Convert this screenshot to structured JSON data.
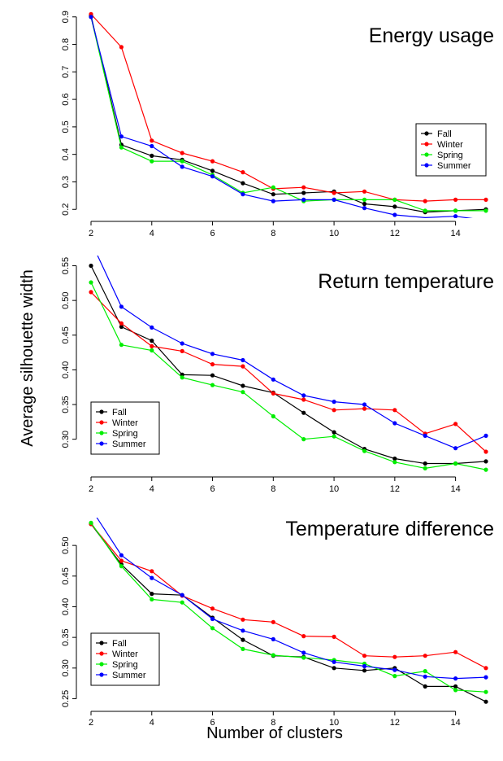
{
  "figure": {
    "ylabel": "Average silhouette width",
    "xlabel": "Number of clusters"
  },
  "chart_data": [
    {
      "type": "line",
      "title": "Energy usage",
      "xlabel": "Number of clusters",
      "ylabel": "Average silhouette width",
      "x": [
        2,
        3,
        4,
        5,
        6,
        7,
        8,
        9,
        10,
        11,
        12,
        13,
        14,
        15
      ],
      "xticks": [
        2,
        4,
        6,
        8,
        10,
        12,
        14
      ],
      "yticks": [
        0.2,
        0.3,
        0.4,
        0.5,
        0.6,
        0.7,
        0.8,
        0.9
      ],
      "ytick_labels": [
        "0.2",
        "0.3",
        "0.4",
        "0.5",
        "0.6",
        "0.7",
        "0.8",
        "0.9"
      ],
      "ylim": [
        0.18,
        0.92
      ],
      "xlim": [
        2,
        15
      ],
      "legend_position": "middle-right",
      "series": [
        {
          "name": "Fall",
          "color": "#000000",
          "values": [
            0.905,
            0.435,
            0.395,
            0.38,
            0.34,
            0.295,
            0.255,
            0.26,
            0.265,
            0.22,
            0.21,
            0.19,
            0.195,
            0.2
          ]
        },
        {
          "name": "Winter",
          "color": "#ff0000",
          "values": [
            0.91,
            0.79,
            0.45,
            0.405,
            0.375,
            0.335,
            0.275,
            0.28,
            0.26,
            0.265,
            0.235,
            0.23,
            0.235,
            0.235
          ]
        },
        {
          "name": "Spring",
          "color": "#00ee00",
          "values": [
            0.9,
            0.425,
            0.375,
            0.375,
            0.325,
            0.26,
            0.28,
            0.23,
            0.235,
            0.235,
            0.235,
            0.195,
            0.195,
            0.195
          ]
        },
        {
          "name": "Summer",
          "color": "#0000ff",
          "values": [
            0.9,
            0.465,
            0.43,
            0.355,
            0.32,
            0.255,
            0.23,
            0.235,
            0.235,
            0.205,
            0.18,
            0.17,
            0.175,
            0.16
          ]
        }
      ]
    },
    {
      "type": "line",
      "title": "Return temperature",
      "xlabel": "Number of clusters",
      "ylabel": "Average silhouette width",
      "x": [
        2,
        3,
        4,
        5,
        6,
        7,
        8,
        9,
        10,
        11,
        12,
        13,
        14,
        15
      ],
      "xticks": [
        2,
        4,
        6,
        8,
        10,
        12,
        14
      ],
      "yticks": [
        0.3,
        0.35,
        0.4,
        0.45,
        0.5,
        0.55
      ],
      "ytick_labels": [
        "0.30",
        "0.35",
        "0.40",
        "0.45",
        "0.50",
        "0.55"
      ],
      "ylim": [
        0.255,
        0.56
      ],
      "xlim": [
        2,
        15
      ],
      "legend_position": "bottom-left",
      "series": [
        {
          "name": "Fall",
          "color": "#000000",
          "values": [
            0.55,
            0.462,
            0.442,
            0.393,
            0.392,
            0.377,
            0.367,
            0.338,
            0.31,
            0.286,
            0.272,
            0.265,
            0.265,
            0.268
          ]
        },
        {
          "name": "Winter",
          "color": "#ff0000",
          "values": [
            0.512,
            0.467,
            0.434,
            0.427,
            0.408,
            0.405,
            0.366,
            0.357,
            0.342,
            0.344,
            0.342,
            0.308,
            0.322,
            0.282
          ]
        },
        {
          "name": "Spring",
          "color": "#00ee00",
          "values": [
            0.526,
            0.436,
            0.428,
            0.389,
            0.378,
            0.368,
            0.333,
            0.3,
            0.304,
            0.283,
            0.267,
            0.258,
            0.265,
            0.256
          ]
        },
        {
          "name": "Summer",
          "color": "#0000ff",
          "values": [
            0.585,
            0.491,
            0.461,
            0.438,
            0.423,
            0.414,
            0.386,
            0.363,
            0.354,
            0.35,
            0.323,
            0.305,
            0.287,
            0.305
          ]
        }
      ]
    },
    {
      "type": "line",
      "title": "Temperature difference",
      "xlabel": "Number of clusters",
      "ylabel": "Average silhouette width",
      "x": [
        2,
        3,
        4,
        5,
        6,
        7,
        8,
        9,
        10,
        11,
        12,
        13,
        14,
        15
      ],
      "xticks": [
        2,
        4,
        6,
        8,
        10,
        12,
        14
      ],
      "yticks": [
        0.25,
        0.3,
        0.35,
        0.4,
        0.45,
        0.5
      ],
      "ytick_labels": [
        "0.25",
        "0.30",
        "0.35",
        "0.40",
        "0.45",
        "0.50"
      ],
      "ylim": [
        0.24,
        0.54
      ],
      "xlim": [
        2,
        15
      ],
      "legend_position": "bottom-left",
      "series": [
        {
          "name": "Fall",
          "color": "#000000",
          "values": [
            0.535,
            0.469,
            0.421,
            0.419,
            0.382,
            0.346,
            0.32,
            0.318,
            0.3,
            0.296,
            0.3,
            0.27,
            0.27,
            0.245
          ]
        },
        {
          "name": "Winter",
          "color": "#ff0000",
          "values": [
            0.535,
            0.475,
            0.458,
            0.418,
            0.397,
            0.379,
            0.375,
            0.352,
            0.351,
            0.32,
            0.318,
            0.32,
            0.326,
            0.3
          ]
        },
        {
          "name": "Spring",
          "color": "#00ee00",
          "values": [
            0.537,
            0.466,
            0.412,
            0.407,
            0.365,
            0.331,
            0.321,
            0.317,
            0.313,
            0.307,
            0.287,
            0.295,
            0.264,
            0.261
          ]
        },
        {
          "name": "Summer",
          "color": "#0000ff",
          "values": [
            0.56,
            0.484,
            0.447,
            0.419,
            0.38,
            0.361,
            0.347,
            0.325,
            0.31,
            0.303,
            0.297,
            0.286,
            0.283,
            0.285
          ]
        }
      ]
    }
  ]
}
